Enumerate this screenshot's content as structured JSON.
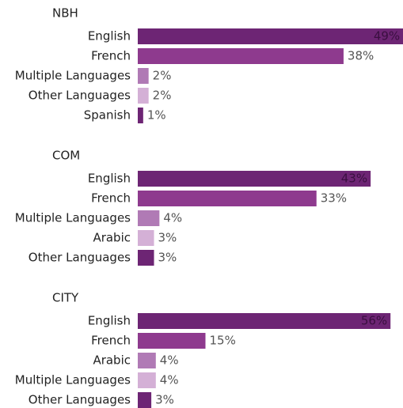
{
  "chart_data": [
    {
      "type": "bar",
      "title": "NBH",
      "categories": [
        "English",
        "French",
        "Multiple Languages",
        "Other Languages",
        "Spanish"
      ],
      "values": [
        49,
        38,
        2,
        2,
        1
      ],
      "value_labels": [
        "49%",
        "38%",
        "2%",
        "2%",
        "1%"
      ],
      "colors": [
        "#6d2574",
        "#8e3a8e",
        "#b07ab5",
        "#d4b0d6",
        "#6d2574"
      ],
      "xlim": [
        0,
        50
      ]
    },
    {
      "type": "bar",
      "title": "COM",
      "categories": [
        "English",
        "French",
        "Multiple Languages",
        "Arabic",
        "Other Languages"
      ],
      "values": [
        43,
        33,
        4,
        3,
        3
      ],
      "value_labels": [
        "43%",
        "33%",
        "4%",
        "3%",
        "3%"
      ],
      "colors": [
        "#6d2574",
        "#8e3a8e",
        "#b07ab5",
        "#d4b0d6",
        "#6d2574"
      ],
      "xlim": [
        0,
        50
      ]
    },
    {
      "type": "bar",
      "title": "CITY",
      "categories": [
        "English",
        "French",
        "Arabic",
        "Multiple Languages",
        "Other Languages"
      ],
      "values": [
        56,
        15,
        4,
        4,
        3
      ],
      "value_labels": [
        "56%",
        "15%",
        "4%",
        "4%",
        "3%"
      ],
      "colors": [
        "#6d2574",
        "#8e3a8e",
        "#b07ab5",
        "#d4b0d6",
        "#6d2574"
      ],
      "xlim": [
        0,
        60
      ]
    }
  ]
}
